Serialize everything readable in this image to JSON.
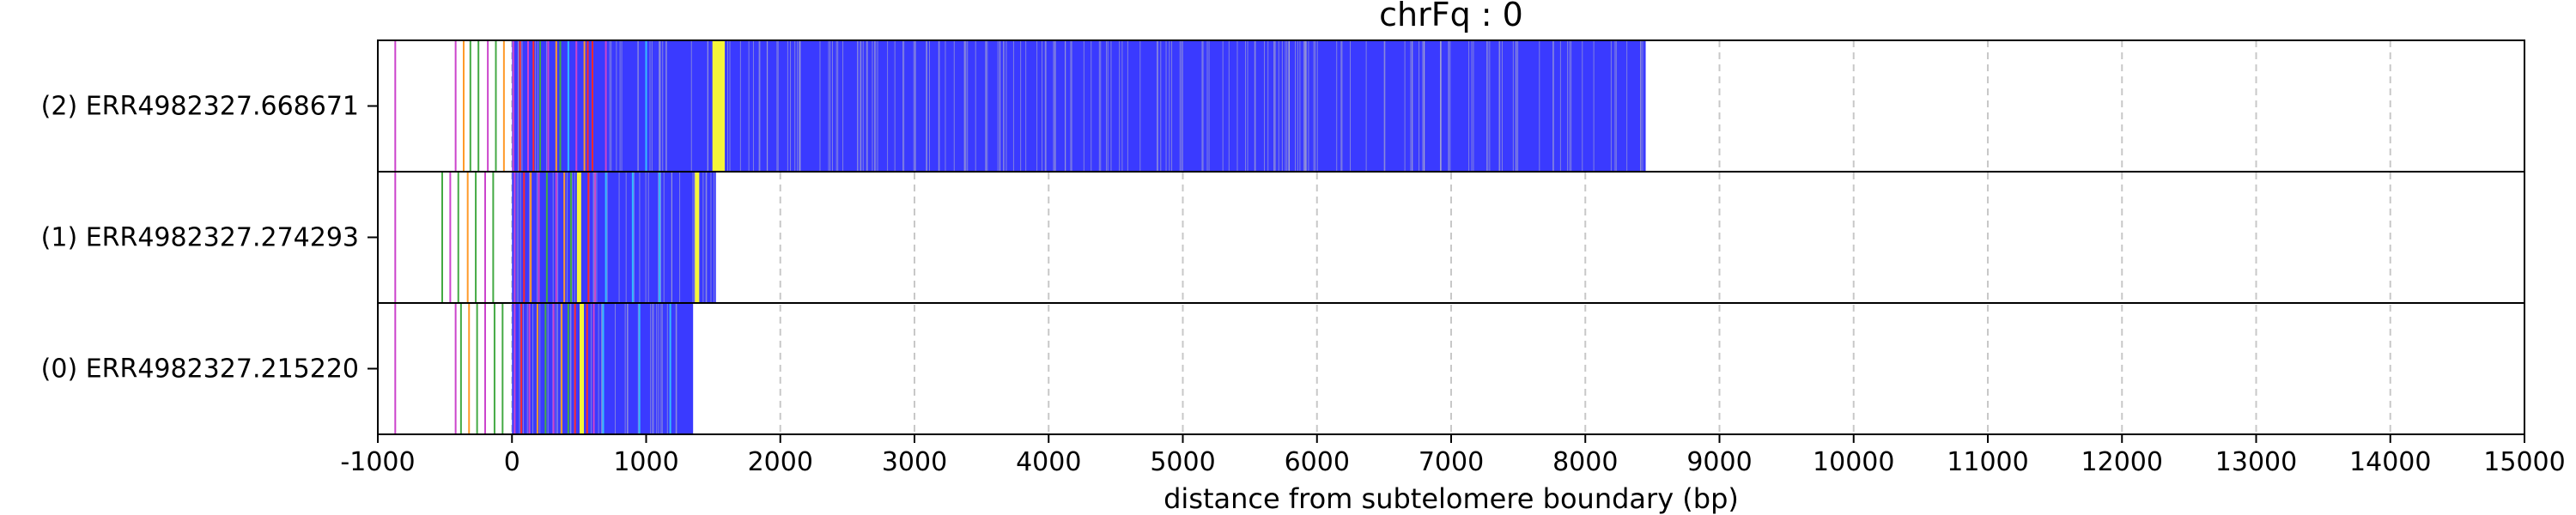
{
  "chart_data": {
    "type": "bar",
    "title": "chrFq : 0",
    "xlabel": "distance from subtelomere boundary (bp)",
    "ylabel": "",
    "xlim": [
      -1000,
      15000
    ],
    "xticks": [
      -1000,
      0,
      1000,
      2000,
      3000,
      4000,
      5000,
      6000,
      7000,
      8000,
      9000,
      10000,
      11000,
      12000,
      13000,
      14000,
      15000
    ],
    "xtick_labels": [
      "-1000",
      "0",
      "1000",
      "2000",
      "3000",
      "4000",
      "5000",
      "6000",
      "7000",
      "8000",
      "9000",
      "10000",
      "11000",
      "12000",
      "13000",
      "14000",
      "15000"
    ],
    "grid": "vertical dashed",
    "colors": {
      "blue": "#3a3aff",
      "yellow": "#f5f53a",
      "red": "#ff2a2a",
      "orange": "#ff9a2a",
      "magenta": "#cc44cc",
      "green": "#44aa44",
      "cyan": "#33bbff",
      "gray": "#b8b8c8"
    },
    "reads": [
      {
        "label": "(2) ERR4982327.668671",
        "blue_start": 0,
        "blue_end": 8450,
        "marks": [
          {
            "x": -870,
            "c": "magenta"
          },
          {
            "x": -420,
            "c": "magenta"
          },
          {
            "x": -360,
            "c": "orange"
          },
          {
            "x": -310,
            "c": "green"
          },
          {
            "x": -250,
            "c": "green"
          },
          {
            "x": -180,
            "c": "magenta"
          },
          {
            "x": -120,
            "c": "green"
          },
          {
            "x": -60,
            "c": "orange"
          },
          {
            "x": 10,
            "c": "magenta"
          },
          {
            "x": 60,
            "c": "red"
          },
          {
            "x": 120,
            "c": "magenta"
          },
          {
            "x": 160,
            "c": "red"
          },
          {
            "x": 210,
            "c": "green"
          },
          {
            "x": 270,
            "c": "magenta"
          },
          {
            "x": 330,
            "c": "orange"
          },
          {
            "x": 360,
            "c": "green"
          },
          {
            "x": 420,
            "c": "cyan"
          },
          {
            "x": 480,
            "c": "magenta"
          },
          {
            "x": 540,
            "c": "orange"
          },
          {
            "x": 565,
            "c": "red"
          },
          {
            "x": 600,
            "c": "red"
          },
          {
            "x": 700,
            "c": "magenta"
          },
          {
            "x": 1000,
            "c": "cyan"
          },
          {
            "x": 1510,
            "c": "yellow"
          },
          {
            "x": 1540,
            "c": "yellow"
          },
          {
            "x": 1570,
            "c": "yellow"
          }
        ]
      },
      {
        "label": "(1) ERR4982327.274293",
        "blue_start": 0,
        "blue_end": 1520,
        "marks": [
          {
            "x": -870,
            "c": "magenta"
          },
          {
            "x": -520,
            "c": "green"
          },
          {
            "x": -460,
            "c": "magenta"
          },
          {
            "x": -400,
            "c": "green"
          },
          {
            "x": -330,
            "c": "orange"
          },
          {
            "x": -270,
            "c": "green"
          },
          {
            "x": -200,
            "c": "magenta"
          },
          {
            "x": -140,
            "c": "green"
          },
          {
            "x": 20,
            "c": "magenta"
          },
          {
            "x": 90,
            "c": "red"
          },
          {
            "x": 140,
            "c": "orange"
          },
          {
            "x": 200,
            "c": "magenta"
          },
          {
            "x": 260,
            "c": "green"
          },
          {
            "x": 330,
            "c": "magenta"
          },
          {
            "x": 390,
            "c": "orange"
          },
          {
            "x": 440,
            "c": "green"
          },
          {
            "x": 500,
            "c": "yellow"
          },
          {
            "x": 570,
            "c": "red"
          },
          {
            "x": 620,
            "c": "magenta"
          },
          {
            "x": 700,
            "c": "cyan"
          },
          {
            "x": 900,
            "c": "cyan"
          },
          {
            "x": 1100,
            "c": "cyan"
          },
          {
            "x": 1380,
            "c": "yellow"
          }
        ]
      },
      {
        "label": "(0) ERR4982327.215220",
        "blue_start": 0,
        "blue_end": 1350,
        "marks": [
          {
            "x": -870,
            "c": "magenta"
          },
          {
            "x": -420,
            "c": "magenta"
          },
          {
            "x": -380,
            "c": "green"
          },
          {
            "x": -320,
            "c": "orange"
          },
          {
            "x": -260,
            "c": "green"
          },
          {
            "x": -200,
            "c": "magenta"
          },
          {
            "x": -130,
            "c": "green"
          },
          {
            "x": -70,
            "c": "green"
          },
          {
            "x": 20,
            "c": "magenta"
          },
          {
            "x": 70,
            "c": "red"
          },
          {
            "x": 130,
            "c": "magenta"
          },
          {
            "x": 190,
            "c": "orange"
          },
          {
            "x": 250,
            "c": "green"
          },
          {
            "x": 310,
            "c": "magenta"
          },
          {
            "x": 370,
            "c": "orange"
          },
          {
            "x": 420,
            "c": "green"
          },
          {
            "x": 470,
            "c": "red"
          },
          {
            "x": 520,
            "c": "yellow"
          },
          {
            "x": 560,
            "c": "red"
          },
          {
            "x": 610,
            "c": "magenta"
          },
          {
            "x": 680,
            "c": "cyan"
          },
          {
            "x": 950,
            "c": "cyan"
          },
          {
            "x": 1180,
            "c": "cyan"
          }
        ]
      }
    ]
  }
}
